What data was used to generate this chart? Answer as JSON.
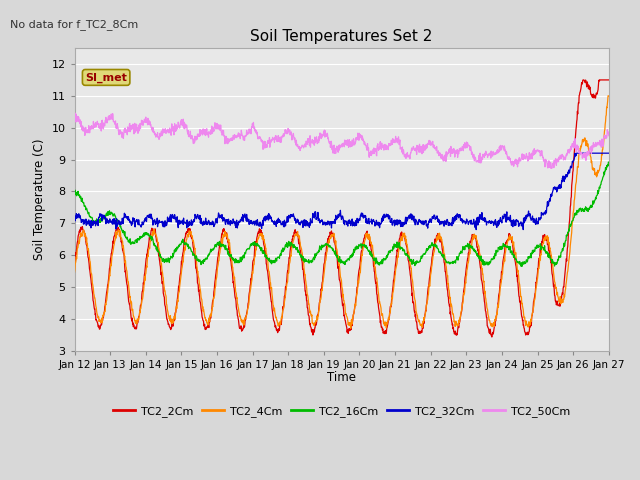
{
  "title": "Soil Temperatures Set 2",
  "subtitle": "No data for f_TC2_8Cm",
  "ylabel": "Soil Temperature (C)",
  "xlabel": "Time",
  "ylim": [
    3.0,
    12.5
  ],
  "yticks": [
    3.0,
    4.0,
    5.0,
    6.0,
    7.0,
    8.0,
    9.0,
    10.0,
    11.0,
    12.0
  ],
  "background_color": "#d8d8d8",
  "plot_bg_color": "#e8e8e8",
  "grid_color": "#ffffff",
  "x_labels": [
    "Jan 12",
    "Jan 13",
    "Jan 14",
    "Jan 15",
    "Jan 16",
    "Jan 17",
    "Jan 18",
    "Jan 19",
    "Jan 20",
    "Jan 21",
    "Jan 22",
    "Jan 23",
    "Jan 24",
    "Jan 25",
    "Jan 26",
    "Jan 27"
  ],
  "legend_box_color": "#e0d878",
  "legend_box_text": "SI_met",
  "legend_box_text_color": "#990000",
  "legend_box_edge_color": "#998800",
  "series": [
    {
      "label": "TC2_2Cm",
      "color": "#dd0000"
    },
    {
      "label": "TC2_4Cm",
      "color": "#ff8800"
    },
    {
      "label": "TC2_16Cm",
      "color": "#00bb00"
    },
    {
      "label": "TC2_32Cm",
      "color": "#0000cc"
    },
    {
      "label": "TC2_50Cm",
      "color": "#ee88ee"
    }
  ]
}
